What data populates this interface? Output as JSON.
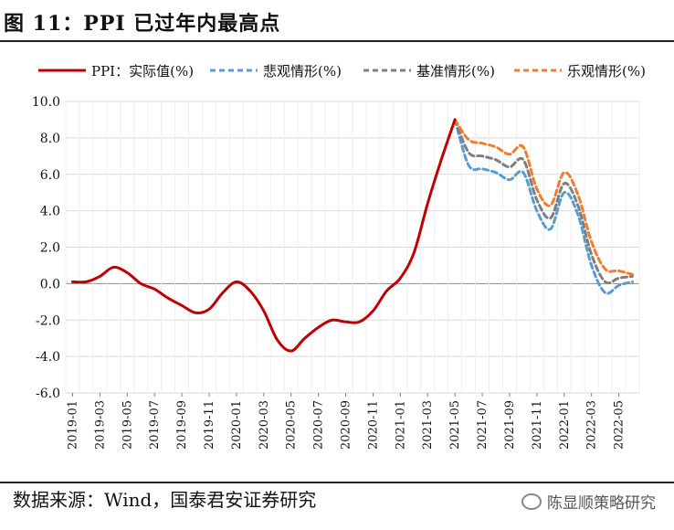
{
  "header": {
    "title": "图 11：PPI 已过年内最高点"
  },
  "footer": {
    "source": "数据来源：Wind，国泰君安证券研究",
    "watermark": "陈显顺策略研究"
  },
  "colors": {
    "actual": "#c00000",
    "pessimistic": "#5b9bd5",
    "baseline": "#7f7f7f",
    "optimistic": "#ed7d31",
    "grid": "#d9d9d9",
    "plot_bg": "#ffffff"
  },
  "chart_data": {
    "type": "line",
    "title": "PPI 已过年内最高点",
    "xlabel": "",
    "ylabel": "",
    "ylim": [
      -6.0,
      10.0
    ],
    "yticks": [
      -6.0,
      -4.0,
      -2.0,
      0.0,
      2.0,
      4.0,
      6.0,
      8.0,
      10.0
    ],
    "ytick_labels": [
      "-6.0",
      "-4.0",
      "-2.0",
      "0.0",
      "2.0",
      "4.0",
      "6.0",
      "8.0",
      "10.0"
    ],
    "x_start": "2019-01",
    "x_count": 42,
    "tick_labels": [
      "2019-01",
      "2019-03",
      "2019-05",
      "2019-07",
      "2019-09",
      "2019-11",
      "2020-01",
      "2020-03",
      "2020-05",
      "2020-07",
      "2020-09",
      "2020-11",
      "2021-01",
      "2021-03",
      "2021-05",
      "2021-07",
      "2021-09",
      "2021-11",
      "2022-01",
      "2022-03",
      "2022-05"
    ],
    "legend_position": "top",
    "series": [
      {
        "name": "PPI：实际值(%)",
        "style": "solid",
        "x_offset": 0,
        "values": [
          0.1,
          0.1,
          0.4,
          0.9,
          0.6,
          0.0,
          -0.3,
          -0.8,
          -1.2,
          -1.6,
          -1.4,
          -0.5,
          0.1,
          -0.4,
          -1.5,
          -3.1,
          -3.7,
          -3.0,
          -2.4,
          -2.0,
          -2.1,
          -2.1,
          -1.5,
          -0.4,
          0.3,
          1.7,
          4.4,
          6.8,
          9.0
        ]
      },
      {
        "name": "悲观情形(%)",
        "style": "dashed",
        "x_offset": 28,
        "values": [
          9.0,
          6.5,
          6.3,
          6.1,
          5.7,
          6.1,
          4.0,
          3.0,
          5.0,
          3.8,
          1.0,
          -0.5,
          -0.1,
          0.1
        ]
      },
      {
        "name": "基准情形(%)",
        "style": "dashed",
        "x_offset": 28,
        "values": [
          9.0,
          7.2,
          7.0,
          6.8,
          6.4,
          6.8,
          4.6,
          3.6,
          5.5,
          4.3,
          1.6,
          0.1,
          0.3,
          0.4
        ]
      },
      {
        "name": "乐观情形(%)",
        "style": "dashed",
        "x_offset": 28,
        "values": [
          9.0,
          7.9,
          7.7,
          7.5,
          7.1,
          7.5,
          5.2,
          4.3,
          6.1,
          4.9,
          2.3,
          0.8,
          0.7,
          0.5
        ]
      }
    ]
  }
}
